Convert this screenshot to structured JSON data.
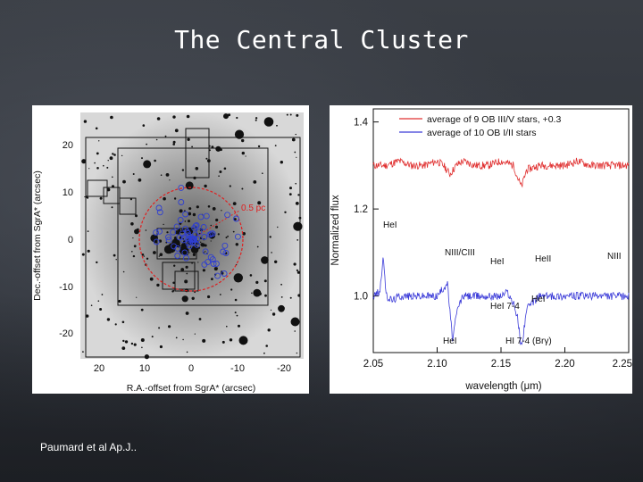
{
  "slide": {
    "title": "The Central Cluster",
    "credit": "Paumard et al Ap.J.."
  },
  "left_figure": {
    "ylabel": "Dec.-offset from SgrA* (arcsec)",
    "xlabel": "R.A.-offset from SgrA* (arcsec)",
    "y_ticks": [
      "20",
      "10",
      "0",
      "-10",
      "-20"
    ],
    "x_ticks": [
      "20",
      "10",
      "0",
      "-10",
      "-20"
    ],
    "annotation": "0.5 pc"
  },
  "chart_data": {
    "type": "line",
    "xlabel": "wavelength (μm)",
    "ylabel": "Normalized flux",
    "xlim": [
      2.05,
      2.25
    ],
    "ylim": [
      0.87,
      1.43
    ],
    "x_ticks": [
      "2.05",
      "2.10",
      "2.15",
      "2.20",
      "2.25"
    ],
    "y_ticks": [
      "1.4",
      "1.2",
      "1.0"
    ],
    "series": [
      {
        "name": "average of 9 OB III/V stars, +0.3",
        "color": "#e03030",
        "baseline": 1.3,
        "x": [
          2.05,
          2.06,
          2.07,
          2.08,
          2.09,
          2.1,
          2.105,
          2.11,
          2.115,
          2.12,
          2.13,
          2.14,
          2.15,
          2.16,
          2.162,
          2.166,
          2.17,
          2.18,
          2.19,
          2.2,
          2.21,
          2.22,
          2.23,
          2.24,
          2.25
        ],
        "values": [
          1.3,
          1.3,
          1.31,
          1.3,
          1.3,
          1.31,
          1.3,
          1.28,
          1.3,
          1.31,
          1.3,
          1.3,
          1.31,
          1.3,
          1.28,
          1.25,
          1.29,
          1.3,
          1.3,
          1.3,
          1.31,
          1.3,
          1.3,
          1.3,
          1.3
        ]
      },
      {
        "name": "average of 10 OB I/II stars",
        "color": "#3a3ad8",
        "baseline": 1.0,
        "x": [
          2.05,
          2.055,
          2.058,
          2.06,
          2.065,
          2.07,
          2.08,
          2.09,
          2.1,
          2.108,
          2.112,
          2.116,
          2.12,
          2.13,
          2.14,
          2.15,
          2.155,
          2.16,
          2.163,
          2.166,
          2.17,
          2.18,
          2.19,
          2.2,
          2.21,
          2.22,
          2.23,
          2.24,
          2.25
        ],
        "values": [
          1.0,
          1.01,
          1.09,
          1.0,
          0.99,
          1.0,
          1.0,
          1.0,
          1.0,
          1.03,
          0.9,
          0.97,
          1.0,
          1.0,
          1.0,
          1.0,
          1.01,
          0.98,
          0.95,
          0.88,
          0.97,
          1.0,
          1.0,
          1.0,
          1.0,
          1.0,
          1.0,
          1.0,
          1.0
        ]
      }
    ],
    "line_labels": [
      "HeI",
      "NIII/CIII",
      "HeI",
      "HeII",
      "NIII",
      "HeI",
      "HeI 7-4",
      "HeI",
      "HI 7-4 (Brγ)"
    ]
  }
}
